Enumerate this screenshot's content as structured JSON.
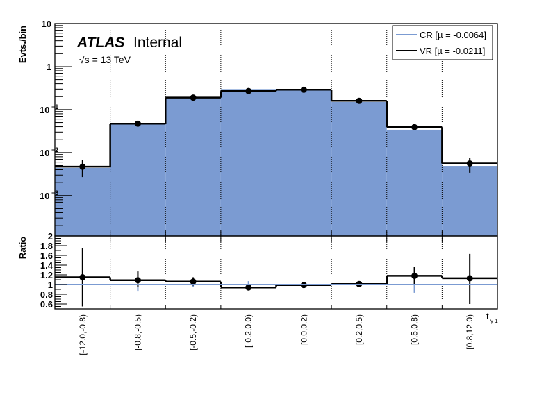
{
  "chart_data": [
    {
      "type": "bar",
      "panel": "main",
      "yscale": "log",
      "ylabel": "Evts./bin",
      "ylim": [
        0.000115,
        10
      ],
      "yticks": [
        {
          "v": 10,
          "b": "10",
          "e": ""
        },
        {
          "v": 1,
          "b": "1",
          "e": ""
        },
        {
          "v": 0.1,
          "b": "10",
          "e": "−1"
        },
        {
          "v": 0.01,
          "b": "10",
          "e": "−2"
        },
        {
          "v": 0.001,
          "b": "10",
          "e": "−3"
        }
      ],
      "categories": [
        "[-12.0,-0.8)",
        "[-0.8,-0.5)",
        "[-0.5,-0.2)",
        "[-0.2,0.0)",
        "[0.0,0.2)",
        "[0.2,0.5)",
        "[0.5,0.8)",
        "[0.8,12.0)"
      ],
      "series": [
        {
          "name": "CR [µ = -0.0064]",
          "style": "filled",
          "color": "#7b9bd2",
          "values": [
            0.0044,
            0.046,
            0.19,
            0.3,
            0.29,
            0.15,
            0.034,
            0.0049
          ]
        },
        {
          "name": "VR [µ = -0.0211]",
          "style": "step+points",
          "color": "#000000",
          "values": [
            0.0047,
            0.047,
            0.19,
            0.27,
            0.29,
            0.16,
            0.039,
            0.0056
          ],
          "err_low": [
            0.0027,
            0.044,
            0.18,
            0.25,
            0.27,
            0.15,
            0.036,
            0.0034
          ],
          "err_high": [
            0.0067,
            0.05,
            0.2,
            0.29,
            0.31,
            0.17,
            0.042,
            0.0074
          ]
        }
      ],
      "legend_position": "top-right",
      "annotations": {
        "experiment": "ATLAS",
        "status": "Internal",
        "energy": "√s = 13 TeV"
      }
    },
    {
      "type": "line",
      "panel": "ratio",
      "ylabel": "Ratio",
      "xlabel": "t",
      "xlabel_sub": "γ 1",
      "ylim": [
        0.5,
        2.0
      ],
      "yticks": [
        "2",
        "1.8",
        "1.6",
        "1.4",
        "1.2",
        "1",
        "0.8",
        "0.6"
      ],
      "ytick_values": [
        2,
        1.8,
        1.6,
        1.4,
        1.2,
        1,
        0.8,
        0.6
      ],
      "reference_line": 1.0,
      "cr_err_low": [
        1,
        0.87,
        0.95,
        1,
        1,
        1,
        0.83,
        1
      ],
      "cr_err_high": [
        1,
        1,
        1,
        1.07,
        1,
        1,
        1,
        1
      ],
      "values": [
        1.15,
        1.09,
        1.06,
        0.94,
        0.99,
        1.01,
        1.18,
        1.13
      ],
      "err_low": [
        0.55,
        0.95,
        0.98,
        0.92,
        0.97,
        0.96,
        1.0,
        0.6
      ],
      "err_high": [
        1.75,
        1.27,
        1.15,
        0.97,
        1.02,
        1.07,
        1.37,
        1.63
      ]
    }
  ]
}
